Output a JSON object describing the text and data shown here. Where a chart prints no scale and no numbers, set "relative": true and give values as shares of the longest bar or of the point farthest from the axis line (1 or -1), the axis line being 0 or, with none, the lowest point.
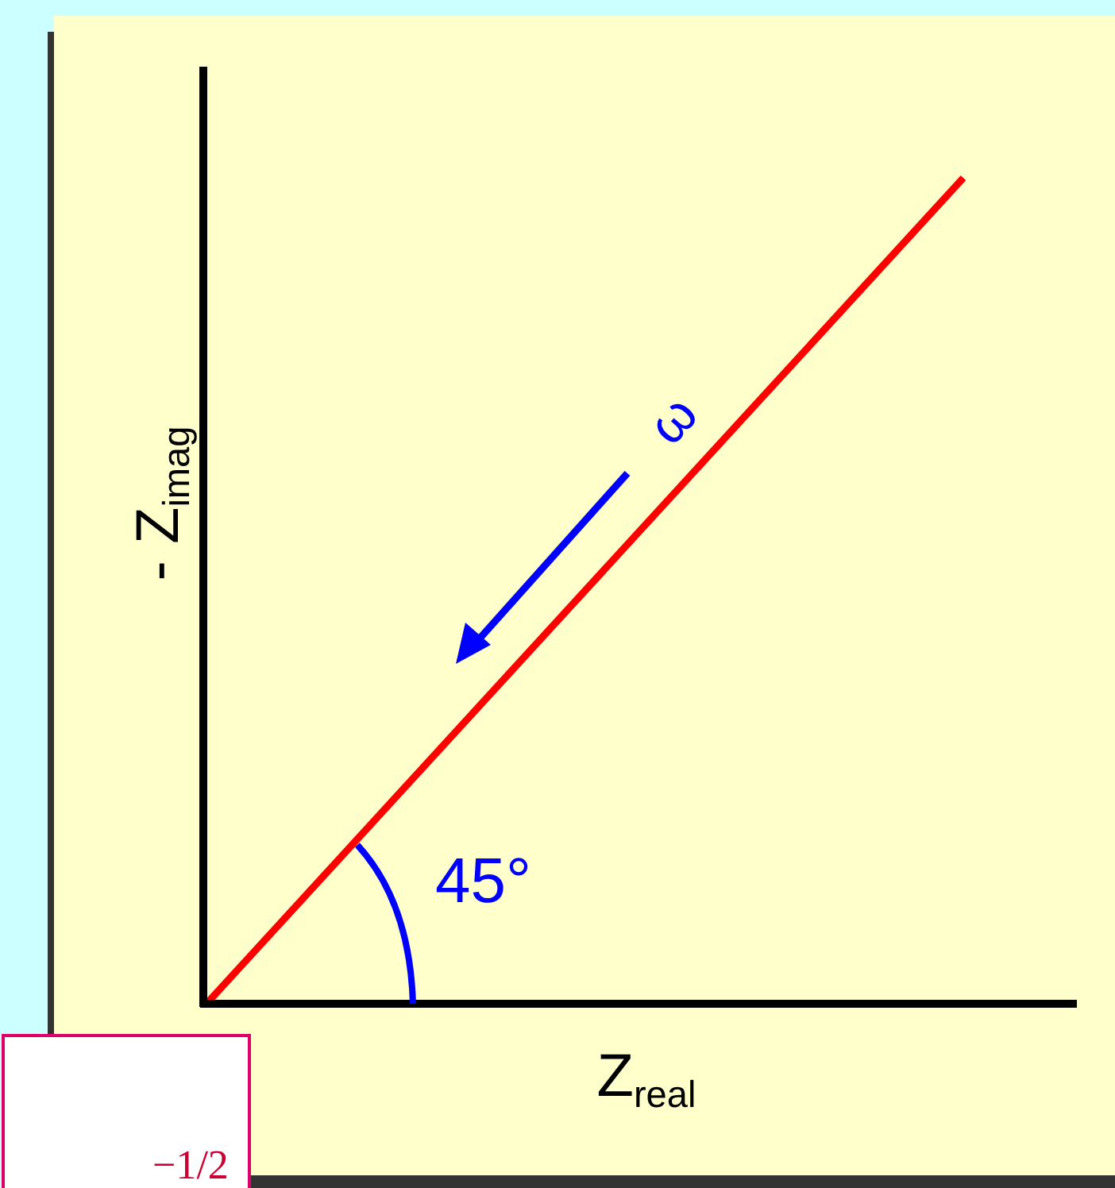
{
  "chart_data": {
    "type": "line",
    "relative": true,
    "xlabel": "Z$_{real}$",
    "ylabel": "- Z$_{imag}$",
    "categories": [
      null,
      null
    ],
    "series": [
      {
        "color": "#ff0000",
        "values": [
          0,
          1
        ]
      }
    ],
    "ref_lines": [
      {
        "axis": "y",
        "value": 0,
        "color": "#000000"
      }
    ],
    "annotations": [
      "ω",
      "45°",
      "−1/2"
    ],
    "grid": false,
    "legend": false,
    "marker": "none",
    "line_style": "solid"
  }
}
